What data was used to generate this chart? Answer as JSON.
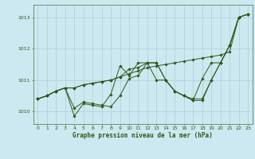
{
  "title": "Graphe pression niveau de la mer (hPa)",
  "background_color": "#cce8f0",
  "grid_color": "#b0cdd4",
  "line_color": "#2d5a1b",
  "spine_color": "#5a8a5a",
  "x_ticks": [
    0,
    1,
    2,
    3,
    4,
    5,
    6,
    7,
    8,
    9,
    10,
    11,
    12,
    13,
    14,
    15,
    16,
    17,
    18,
    19,
    20,
    21,
    22,
    23
  ],
  "ylim": [
    1009.6,
    1013.4
  ],
  "yticks": [
    1010,
    1011,
    1012,
    1013
  ],
  "series": [
    [
      1010.4,
      1010.5,
      1010.65,
      1010.75,
      1010.75,
      1010.85,
      1010.9,
      1010.95,
      1011.0,
      1011.1,
      1011.2,
      1011.3,
      1011.4,
      1011.45,
      1011.5,
      1011.55,
      1011.6,
      1011.65,
      1011.7,
      1011.75,
      1011.8,
      1011.9,
      1013.0,
      1013.1
    ],
    [
      1010.4,
      1010.5,
      1010.65,
      1010.75,
      1009.85,
      1010.25,
      1010.2,
      1010.15,
      1010.55,
      1011.45,
      1011.15,
      1011.55,
      1011.55,
      1011.55,
      1011.0,
      1010.65,
      1010.5,
      1010.4,
      1010.4,
      1011.0,
      1011.55,
      1012.1,
      1013.0,
      1013.1
    ],
    [
      1010.4,
      1010.5,
      1010.65,
      1010.75,
      1010.75,
      1010.85,
      1010.9,
      1010.95,
      1011.0,
      1011.1,
      1011.35,
      1011.4,
      1011.55,
      1011.0,
      1011.0,
      1010.65,
      1010.5,
      1010.35,
      1011.05,
      1011.55,
      1011.55,
      1012.1,
      1013.0,
      1013.1
    ],
    [
      1010.4,
      1010.5,
      1010.65,
      1010.75,
      1010.1,
      1010.3,
      1010.25,
      1010.2,
      1010.15,
      1010.5,
      1011.05,
      1011.15,
      1011.55,
      1011.55,
      1011.0,
      1010.65,
      1010.5,
      1010.35,
      1010.35,
      1011.0,
      1011.55,
      1012.1,
      1013.0,
      1013.1
    ]
  ]
}
